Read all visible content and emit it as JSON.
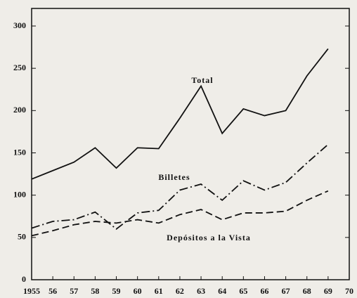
{
  "chart_data": {
    "type": "line",
    "x": [
      1955,
      1956,
      1957,
      1958,
      1959,
      1960,
      1961,
      1962,
      1963,
      1964,
      1965,
      1966,
      1967,
      1968,
      1969
    ],
    "series": [
      {
        "name": "Total",
        "color": "#111111",
        "linestyle": "solid",
        "values": [
          119,
          129,
          139,
          156,
          132,
          156,
          155,
          191,
          229,
          173,
          202,
          194,
          200,
          241,
          273
        ]
      },
      {
        "name": "Billetes",
        "color": "#111111",
        "linestyle": "dashdot",
        "values": [
          61,
          69,
          71,
          80,
          60,
          79,
          82,
          106,
          113,
          94,
          117,
          106,
          115,
          138,
          160
        ]
      },
      {
        "name": "Depósitos a la Vista",
        "color": "#111111",
        "linestyle": "dashed",
        "values": [
          52,
          58,
          65,
          69,
          67,
          71,
          67,
          77,
          83,
          71,
          79,
          79,
          81,
          94,
          105
        ]
      }
    ],
    "xlim": [
      1955,
      1970
    ],
    "xticks": [
      1955,
      {
        "value": 1956,
        "label": "56"
      },
      {
        "value": 1957,
        "label": "57"
      },
      {
        "value": 1958,
        "label": "58"
      },
      {
        "value": 1959,
        "label": "59"
      },
      {
        "value": 1960,
        "label": "60"
      },
      {
        "value": 1961,
        "label": "61"
      },
      {
        "value": 1962,
        "label": "62"
      },
      {
        "value": 1963,
        "label": "63"
      },
      {
        "value": 1964,
        "label": "64"
      },
      {
        "value": 1965,
        "label": "65"
      },
      {
        "value": 1966,
        "label": "66"
      },
      {
        "value": 1967,
        "label": "67"
      },
      {
        "value": 1968,
        "label": "68"
      },
      {
        "value": 1969,
        "label": "69"
      },
      {
        "value": 1970,
        "label": "70"
      }
    ],
    "ylim": [
      0,
      300
    ],
    "yticks": [
      0,
      50,
      100,
      150,
      200,
      250,
      300
    ],
    "grid": false
  }
}
